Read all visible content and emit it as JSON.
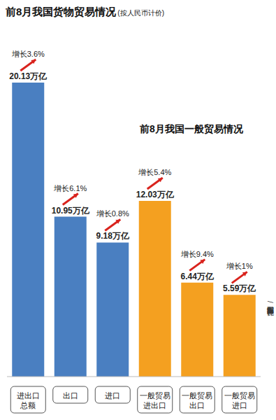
{
  "chart_data": {
    "type": "bar",
    "title": "前8月我国货物贸易情况",
    "subtitle": "(按人民币计价)",
    "annotations": [
      "前8月我国一般贸易情况",
      "新京报制图/许骁"
    ],
    "categories": [
      "进出口总额",
      "出口",
      "进口",
      "一般贸易进出口",
      "一般贸易出口",
      "一般贸易进口"
    ],
    "values": [
      20.13,
      10.95,
      9.18,
      12.03,
      6.44,
      5.59
    ],
    "value_labels": [
      "20.13万亿",
      "10.95万亿",
      "9.18万亿",
      "12.03万亿",
      "6.44万亿",
      "5.59万亿"
    ],
    "growth": [
      3.6,
      6.1,
      0.8,
      5.4,
      9.4,
      1
    ],
    "growth_labels": [
      "增长3.6%",
      "增长6.1%",
      "增长0.8%",
      "增长5.4%",
      "增长9.4%",
      "增长1%"
    ],
    "colors": [
      "#4a7fc1",
      "#4a7fc1",
      "#4a7fc1",
      "#f4a020",
      "#f4a020",
      "#f4a020"
    ],
    "data_labels": true,
    "tick_labels": "x",
    "grid": false
  }
}
